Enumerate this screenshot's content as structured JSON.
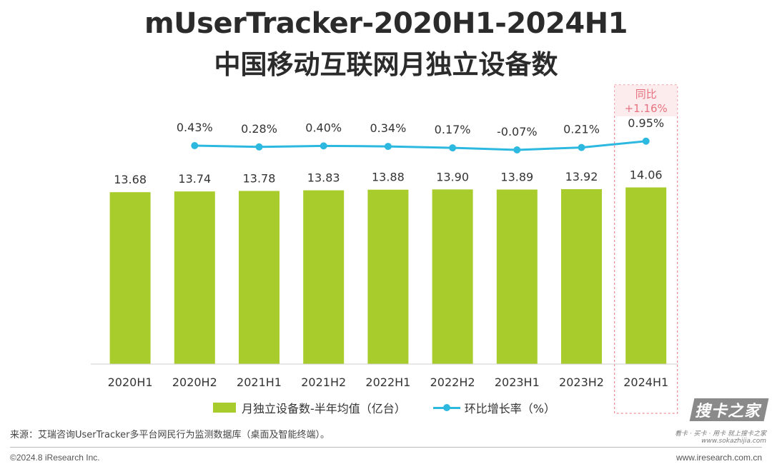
{
  "title_line1": "mUserTracker-2020H1-2024H1",
  "title_line2": "中国移动互联网月独立设备数",
  "chart_data": {
    "type": "bar",
    "categories": [
      "2020H1",
      "2020H2",
      "2021H1",
      "2021H2",
      "2022H1",
      "2022H2",
      "2023H1",
      "2023H2",
      "2024H1"
    ],
    "series": [
      {
        "name": "月独立设备数-半年均值（亿台）",
        "type": "bar",
        "values": [
          13.68,
          13.74,
          13.78,
          13.83,
          13.88,
          13.9,
          13.89,
          13.92,
          14.06
        ],
        "labels": [
          "13.68",
          "13.74",
          "13.78",
          "13.83",
          "13.88",
          "13.90",
          "13.89",
          "13.92",
          "14.06"
        ],
        "color": "#a8cc2c"
      },
      {
        "name": "环比增长率（%）",
        "type": "line",
        "values": [
          null,
          0.43,
          0.28,
          0.4,
          0.34,
          0.17,
          -0.07,
          0.21,
          0.95
        ],
        "labels": [
          "",
          "0.43%",
          "0.28%",
          "0.40%",
          "0.34%",
          "0.17%",
          "-0.07%",
          "0.21%",
          "0.95%"
        ],
        "color": "#2db8e0"
      }
    ],
    "highlight": {
      "category": "2024H1",
      "label_line1": "同比",
      "label_line2": "+1.16%",
      "color": "#e8717f"
    },
    "legend_position": "bottom",
    "grid": false
  },
  "source_text": "来源：艾瑞咨询UserTracker多平台网民行为监测数据库（桌面及智能终端）。",
  "footer": {
    "copyright": "©2024.8 iResearch Inc.",
    "website": "www.iresearch.com.cn"
  },
  "watermark": {
    "main": "搜卡之家",
    "line1": "看卡 · 买卡 · 用卡 就上搜卡之家",
    "line2": "www.sokazhijia.com"
  }
}
